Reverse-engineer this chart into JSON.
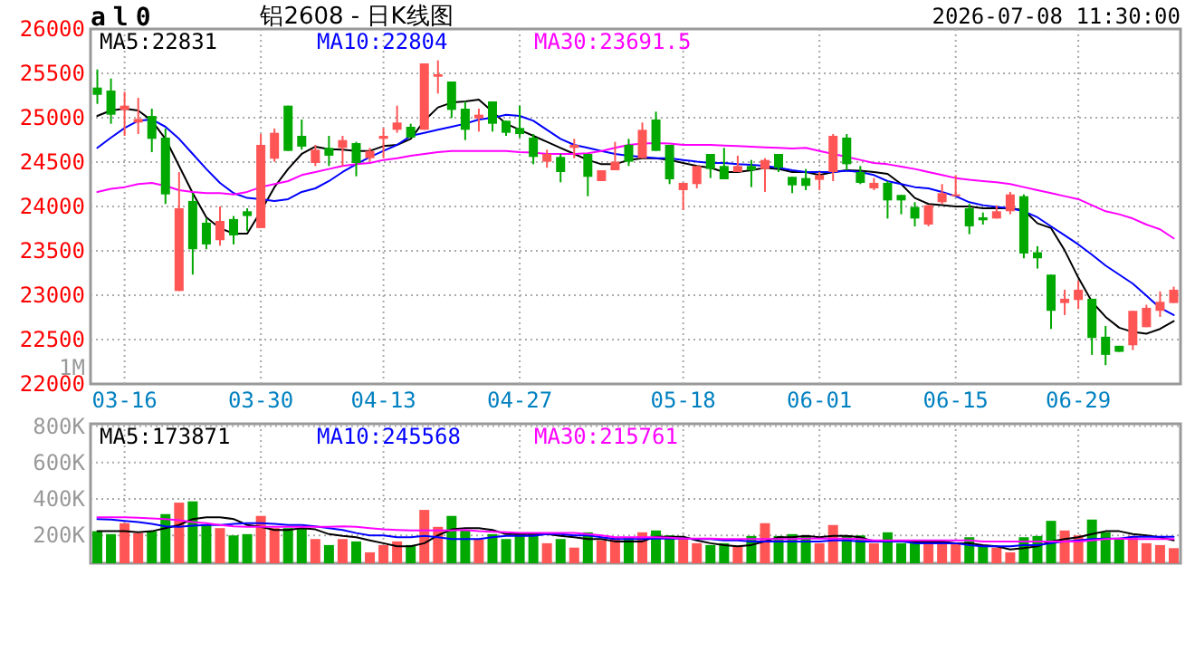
{
  "chart_data": [
    {
      "type": "candlestick",
      "title": "铝2608 - 日K线图",
      "annotations": [
        "al0",
        "2026-07-08 11:30:00"
      ],
      "categories": [
        null,
        null,
        "03-16",
        null,
        null,
        null,
        null,
        null,
        null,
        null,
        null,
        null,
        "03-30",
        null,
        null,
        null,
        null,
        null,
        null,
        null,
        null,
        "04-13",
        null,
        null,
        null,
        null,
        null,
        null,
        null,
        null,
        null,
        "04-27",
        null,
        null,
        null,
        null,
        null,
        null,
        null,
        null,
        null,
        null,
        null,
        "05-18",
        null,
        null,
        null,
        null,
        null,
        null,
        null,
        null,
        null,
        "06-01",
        null,
        null,
        null,
        null,
        null,
        null,
        null,
        null,
        null,
        "06-15",
        null,
        null,
        null,
        null,
        null,
        null,
        null,
        null,
        "06-29",
        null,
        null,
        null,
        null,
        null,
        null,
        null
      ],
      "ohlc": [
        [
          25340,
          25544,
          25156,
          25258
        ],
        [
          25306,
          25442,
          24932,
          25034
        ],
        [
          25088,
          25292,
          24796,
          25136
        ],
        [
          24946,
          25224,
          24816,
          24986
        ],
        [
          25020,
          25102,
          24612,
          24762
        ],
        [
          24776,
          24878,
          24028,
          24136
        ],
        [
          23048,
          24388,
          23048,
          23980
        ],
        [
          24062,
          24150,
          23232,
          23518
        ],
        [
          23817,
          23864,
          23518,
          23572
        ],
        [
          23620,
          24000,
          23558,
          23837
        ],
        [
          23858,
          23892,
          23572,
          23674
        ],
        [
          23946,
          23980,
          23722,
          23892
        ],
        [
          23756,
          24816,
          23756,
          24694
        ],
        [
          24538,
          24878,
          24504,
          24830
        ],
        [
          25136,
          25136,
          24626,
          24626
        ],
        [
          24796,
          24980,
          24640,
          24674
        ],
        [
          24490,
          24694,
          24456,
          24640
        ],
        [
          24660,
          24796,
          24456,
          24572
        ],
        [
          24660,
          24796,
          24456,
          24748
        ],
        [
          24714,
          24728,
          24340,
          24490
        ],
        [
          24544,
          24660,
          24504,
          24626
        ],
        [
          24762,
          24884,
          24544,
          24796
        ],
        [
          24864,
          25136,
          24830,
          24946
        ],
        [
          24898,
          24932,
          24776,
          24776
        ],
        [
          24864,
          25612,
          24864,
          25612
        ],
        [
          25462,
          25646,
          25272,
          25490
        ],
        [
          25408,
          25408,
          24996,
          25088
        ],
        [
          25102,
          25184,
          24748,
          24864
        ],
        [
          24993,
          25102,
          24844,
          25034
        ],
        [
          25184,
          25184,
          24844,
          24932
        ],
        [
          24966,
          24966,
          24796,
          24830
        ],
        [
          24884,
          25136,
          24776,
          24816
        ],
        [
          24776,
          24816,
          24476,
          24558
        ],
        [
          24504,
          24640,
          24436,
          24592
        ],
        [
          24558,
          24592,
          24272,
          24388
        ],
        [
          24660,
          24762,
          24544,
          24694
        ],
        [
          24592,
          24592,
          24116,
          24334
        ],
        [
          24286,
          24408,
          24286,
          24408
        ],
        [
          24408,
          24728,
          24408,
          24504
        ],
        [
          24694,
          24762,
          24456,
          24504
        ],
        [
          24544,
          24946,
          24544,
          24864
        ],
        [
          24980,
          25068,
          24626,
          24626
        ],
        [
          24694,
          24694,
          24252,
          24306
        ],
        [
          24184,
          24266,
          23960,
          24266
        ],
        [
          24252,
          24456,
          24204,
          24456
        ],
        [
          24592,
          24592,
          24320,
          24422
        ],
        [
          24456,
          24660,
          24306,
          24306
        ],
        [
          24388,
          24572,
          24388,
          24456
        ],
        [
          24456,
          24524,
          24218,
          24408
        ],
        [
          24422,
          24544,
          24164,
          24524
        ],
        [
          24592,
          24592,
          24388,
          24436
        ],
        [
          24334,
          24334,
          24150,
          24238
        ],
        [
          24320,
          24422,
          24184,
          24232
        ],
        [
          24300,
          24388,
          24184,
          24354
        ],
        [
          24388,
          24816,
          24286,
          24796
        ],
        [
          24776,
          24816,
          24408,
          24476
        ],
        [
          24388,
          24456,
          24252,
          24266
        ],
        [
          24204,
          24320,
          24184,
          24266
        ],
        [
          24266,
          24286,
          23864,
          24068
        ],
        [
          24130,
          24130,
          23912,
          24068
        ],
        [
          23994,
          24048,
          23776,
          23864
        ],
        [
          23796,
          24014,
          23776,
          24014
        ],
        [
          24048,
          24252,
          24028,
          24150
        ],
        [
          24116,
          24354,
          24116,
          24136
        ],
        [
          23980,
          24028,
          23688,
          23776
        ],
        [
          23878,
          23932,
          23796,
          23844
        ],
        [
          23864,
          24014,
          23864,
          23946
        ],
        [
          23946,
          24164,
          23912,
          24136
        ],
        [
          24116,
          24136,
          23416,
          23470
        ],
        [
          23484,
          23552,
          23300,
          23416
        ],
        [
          23232,
          23232,
          22620,
          22824
        ],
        [
          22912,
          23062,
          22776,
          22960
        ],
        [
          22946,
          23164,
          22844,
          23062
        ],
        [
          22960,
          22960,
          22328,
          22518
        ],
        [
          22532,
          22654,
          22212,
          22328
        ],
        [
          22430,
          22430,
          22362,
          22362
        ],
        [
          22436,
          22824,
          22382,
          22824
        ],
        [
          22640,
          22892,
          22640,
          22858
        ],
        [
          22824,
          23042,
          22756,
          22926
        ],
        [
          22912,
          23096,
          22912,
          23062
        ]
      ],
      "series": [
        {
          "name": "MA5:22831",
          "type": "line",
          "color": "#000000",
          "values": [
            25020,
            25082,
            25102,
            25082,
            24966,
            24762,
            24456,
            24150,
            23878,
            23756,
            23694,
            23694,
            23946,
            24218,
            24422,
            24592,
            24674,
            24646,
            24640,
            24626,
            24626,
            24680,
            24694,
            24762,
            24966,
            25116,
            25170,
            25184,
            25204,
            25068,
            24932,
            24864,
            24796,
            24728,
            24660,
            24592,
            24524,
            24476,
            24476,
            24524,
            24544,
            24544,
            24524,
            24490,
            24456,
            24436,
            24388,
            24388,
            24408,
            24436,
            24422,
            24388,
            24388,
            24354,
            24388,
            24408,
            24402,
            24388,
            24368,
            24252,
            24096,
            24028,
            24014,
            24000,
            24000,
            23980,
            23980,
            23980,
            23960,
            23810,
            23756,
            23504,
            23198,
            22926,
            22756,
            22634,
            22586,
            22566,
            22620,
            22708
          ]
        },
        {
          "name": "MA10:22804",
          "type": "line",
          "color": "#0000ff",
          "values": [
            24660,
            24776,
            24884,
            24966,
            24980,
            24898,
            24762,
            24592,
            24422,
            24266,
            24150,
            24096,
            24082,
            24062,
            24082,
            24164,
            24204,
            24286,
            24388,
            24476,
            24558,
            24626,
            24694,
            24796,
            24830,
            24864,
            24898,
            24932,
            24980,
            24999,
            25034,
            25020,
            24966,
            24864,
            24762,
            24694,
            24660,
            24626,
            24592,
            24572,
            24558,
            24544,
            24544,
            24524,
            24504,
            24490,
            24490,
            24476,
            24470,
            24456,
            24436,
            24408,
            24388,
            24388,
            24388,
            24402,
            24388,
            24354,
            24286,
            24252,
            24218,
            24204,
            24164,
            24116,
            24048,
            24014,
            23994,
            23980,
            23946,
            23878,
            23776,
            23674,
            23572,
            23456,
            23334,
            23232,
            23130,
            22994,
            22858,
            22776
          ]
        },
        {
          "name": "MA30:23691.5",
          "type": "line",
          "color": "#ff00ff",
          "values": [
            24164,
            24198,
            24218,
            24252,
            24266,
            24232,
            24184,
            24164,
            24150,
            24150,
            24136,
            24164,
            24218,
            24252,
            24286,
            24354,
            24388,
            24422,
            24456,
            24476,
            24490,
            24524,
            24544,
            24572,
            24592,
            24612,
            24626,
            24626,
            24626,
            24626,
            24626,
            24612,
            24606,
            24592,
            24592,
            24592,
            24599,
            24626,
            24660,
            24694,
            24708,
            24715,
            24708,
            24694,
            24694,
            24694,
            24687,
            24680,
            24674,
            24667,
            24660,
            24653,
            24660,
            24626,
            24592,
            24558,
            24524,
            24490,
            24476,
            24449,
            24422,
            24388,
            24354,
            24320,
            24300,
            24286,
            24272,
            24252,
            24218,
            24184,
            24150,
            24116,
            24082,
            24014,
            23946,
            23912,
            23864,
            23796,
            23742,
            23640
          ]
        }
      ],
      "ylim": [
        22000,
        26000
      ],
      "yticks": [
        22000,
        22500,
        23000,
        23500,
        24000,
        24500,
        25000,
        25500,
        26000
      ],
      "grid": true,
      "legend": "top left"
    },
    {
      "type": "bar",
      "annotations": [
        "1M"
      ],
      "categories": [
        null,
        null,
        null,
        null,
        null,
        null,
        null,
        null,
        null,
        null,
        null,
        null,
        null,
        null,
        null,
        null,
        null,
        null,
        null,
        null,
        null,
        null,
        null,
        null,
        null,
        null,
        null,
        null,
        null,
        null,
        null,
        null,
        null,
        null,
        null,
        null,
        null,
        null,
        null,
        null,
        null,
        null,
        null,
        null,
        null,
        null,
        null,
        null,
        null,
        null,
        null,
        null,
        null,
        null,
        null,
        null,
        null,
        null,
        null,
        null,
        null,
        null,
        null,
        null,
        null,
        null,
        null,
        null,
        null,
        null,
        null,
        null,
        null,
        null,
        null,
        null,
        null,
        null,
        null,
        null
      ],
      "series": [
        {
          "type": "bar",
          "values": [
            223000,
            207000,
            267000,
            213000,
            223000,
            317000,
            380000,
            387000,
            257000,
            240000,
            200000,
            207000,
            307000,
            240000,
            240000,
            240000,
            180000,
            147000,
            180000,
            167000,
            107000,
            147000,
            167000,
            147000,
            340000,
            247000,
            307000,
            230000,
            180000,
            207000,
            180000,
            207000,
            207000,
            157000,
            180000,
            133000,
            217000,
            173000,
            190000,
            190000,
            217000,
            227000,
            200000,
            180000,
            157000,
            147000,
            157000,
            140000,
            197000,
            267000,
            197000,
            207000,
            200000,
            157000,
            257000,
            200000,
            200000,
            157000,
            217000,
            157000,
            167000,
            167000,
            167000,
            157000,
            190000,
            140000,
            133000,
            107000,
            190000,
            197000,
            280000,
            227000,
            200000,
            287000,
            217000,
            180000,
            197000,
            157000,
            147000,
            130000
          ],
          "colors": [
            "#00a800",
            "#00a800",
            "#ff5555",
            "#ff5555",
            "#00a800",
            "#00a800",
            "#ff5555",
            "#00a800",
            "#00a800",
            "#ff5555",
            "#00a800",
            "#00a800",
            "#ff5555",
            "#ff5555",
            "#00a800",
            "#00a800",
            "#ff5555",
            "#00a800",
            "#ff5555",
            "#00a800",
            "#ff5555",
            "#ff5555",
            "#ff5555",
            "#00a800",
            "#ff5555",
            "#ff5555",
            "#00a800",
            "#00a800",
            "#ff5555",
            "#00a800",
            "#00a800",
            "#00a800",
            "#00a800",
            "#ff5555",
            "#00a800",
            "#ff5555",
            "#00a800",
            "#ff5555",
            "#ff5555",
            "#00a800",
            "#ff5555",
            "#00a800",
            "#00a800",
            "#ff5555",
            "#ff5555",
            "#00a800",
            "#00a800",
            "#ff5555",
            "#00a800",
            "#ff5555",
            "#00a800",
            "#00a800",
            "#00a800",
            "#ff5555",
            "#ff5555",
            "#00a800",
            "#00a800",
            "#ff5555",
            "#00a800",
            "#00a800",
            "#00a800",
            "#ff5555",
            "#ff5555",
            "#ff5555",
            "#00a800",
            "#00a800",
            "#ff5555",
            "#ff5555",
            "#00a800",
            "#00a800",
            "#00a800",
            "#ff5555",
            "#ff5555",
            "#00a800",
            "#00a800",
            "#00a800",
            "#ff5555",
            "#ff5555",
            "#ff5555",
            "#ff5555"
          ]
        },
        {
          "name": "MA5:173871",
          "type": "line",
          "color": "#000000",
          "values": [
            223000,
            223000,
            223000,
            217000,
            223000,
            240000,
            257000,
            290000,
            300000,
            300000,
            290000,
            257000,
            247000,
            230000,
            230000,
            240000,
            233000,
            207000,
            197000,
            190000,
            173000,
            157000,
            140000,
            140000,
            157000,
            200000,
            233000,
            240000,
            240000,
            230000,
            207000,
            207000,
            207000,
            207000,
            197000,
            190000,
            180000,
            180000,
            167000,
            167000,
            167000,
            193000,
            193000,
            193000,
            173000,
            157000,
            147000,
            140000,
            147000,
            167000,
            190000,
            190000,
            197000,
            190000,
            197000,
            197000,
            190000,
            167000,
            167000,
            167000,
            167000,
            167000,
            167000,
            157000,
            157000,
            147000,
            140000,
            123000,
            130000,
            140000,
            167000,
            180000,
            190000,
            207000,
            223000,
            223000,
            207000,
            200000,
            190000,
            173000
          ]
        },
        {
          "name": "MA10:245568",
          "type": "line",
          "color": "#0000ff",
          "values": [
            290000,
            287000,
            280000,
            273000,
            263000,
            250000,
            247000,
            253000,
            257000,
            257000,
            263000,
            267000,
            267000,
            263000,
            257000,
            257000,
            250000,
            240000,
            230000,
            213000,
            200000,
            200000,
            190000,
            190000,
            197000,
            190000,
            180000,
            180000,
            180000,
            190000,
            197000,
            197000,
            197000,
            207000,
            207000,
            200000,
            200000,
            190000,
            180000,
            180000,
            180000,
            183000,
            183000,
            183000,
            180000,
            180000,
            173000,
            173000,
            167000,
            167000,
            167000,
            167000,
            167000,
            167000,
            173000,
            173000,
            167000,
            167000,
            167000,
            167000,
            157000,
            157000,
            157000,
            157000,
            147000,
            140000,
            140000,
            140000,
            147000,
            147000,
            157000,
            167000,
            173000,
            180000,
            183000,
            183000,
            193000,
            193000,
            193000,
            193000
          ]
        },
        {
          "name": "MA30:215761",
          "type": "line",
          "color": "#ff00ff",
          "values": [
            300000,
            300000,
            300000,
            297000,
            293000,
            290000,
            283000,
            273000,
            267000,
            257000,
            250000,
            247000,
            247000,
            247000,
            247000,
            247000,
            247000,
            247000,
            250000,
            247000,
            240000,
            233000,
            230000,
            227000,
            227000,
            227000,
            227000,
            230000,
            223000,
            220000,
            217000,
            213000,
            213000,
            213000,
            213000,
            213000,
            207000,
            200000,
            190000,
            190000,
            190000,
            190000,
            187000,
            183000,
            183000,
            183000,
            180000,
            180000,
            180000,
            180000,
            180000,
            180000,
            183000,
            183000,
            183000,
            183000,
            180000,
            173000,
            173000,
            173000,
            173000,
            173000,
            173000,
            173000,
            173000,
            167000,
            167000,
            167000,
            167000,
            167000,
            167000,
            167000,
            167000,
            173000,
            180000,
            183000,
            180000,
            180000,
            180000,
            180000
          ]
        }
      ],
      "ylim": [
        47000,
        813000
      ],
      "yticks": [
        {
          "value": 200000,
          "label": "200K"
        },
        {
          "value": 400000,
          "label": "400K"
        },
        {
          "value": 600000,
          "label": "600K"
        },
        {
          "value": 800000,
          "label": "800K"
        }
      ],
      "grid": true,
      "legend": "top left"
    }
  ]
}
